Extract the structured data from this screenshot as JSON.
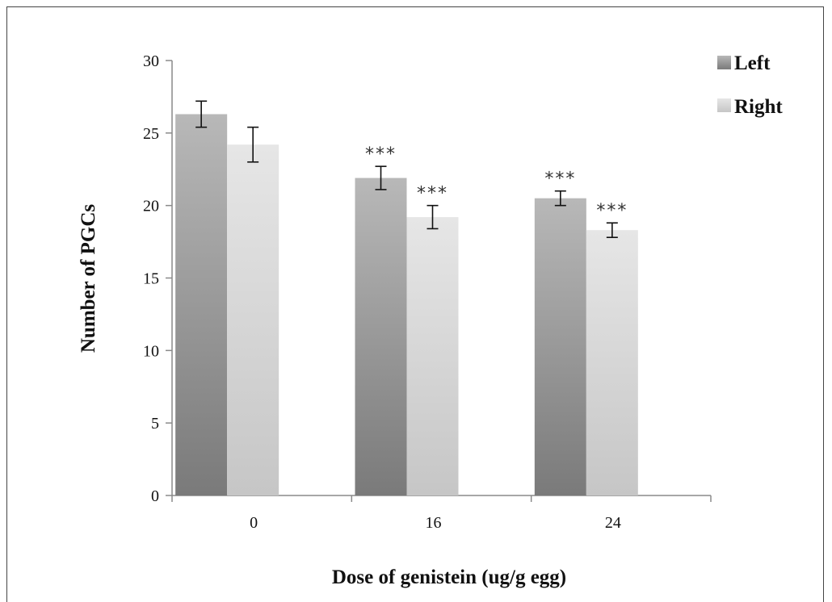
{
  "chart_data": {
    "type": "bar",
    "title": "",
    "xlabel": "Dose of genistein (ug/g egg)",
    "ylabel": "Number of PGCs",
    "categories": [
      "0",
      "16",
      "24"
    ],
    "series": [
      {
        "name": "Left",
        "values": [
          26.3,
          21.9,
          20.5
        ],
        "errors": [
          0.9,
          0.8,
          0.5
        ],
        "significance": [
          "",
          "***",
          "***"
        ]
      },
      {
        "name": "Right",
        "values": [
          24.2,
          19.2,
          18.3
        ],
        "errors": [
          1.2,
          0.8,
          0.5
        ],
        "significance": [
          "",
          "***",
          "***"
        ]
      }
    ],
    "ylim": [
      0,
      30
    ],
    "yticks": [
      0,
      5,
      10,
      15,
      20,
      25,
      30
    ],
    "grid": false,
    "legend": "top-right",
    "colors": {
      "Left": [
        "#b8b8b8",
        "#7a7a7a"
      ],
      "Right": [
        "#e6e6e6",
        "#c6c6c6"
      ]
    }
  }
}
